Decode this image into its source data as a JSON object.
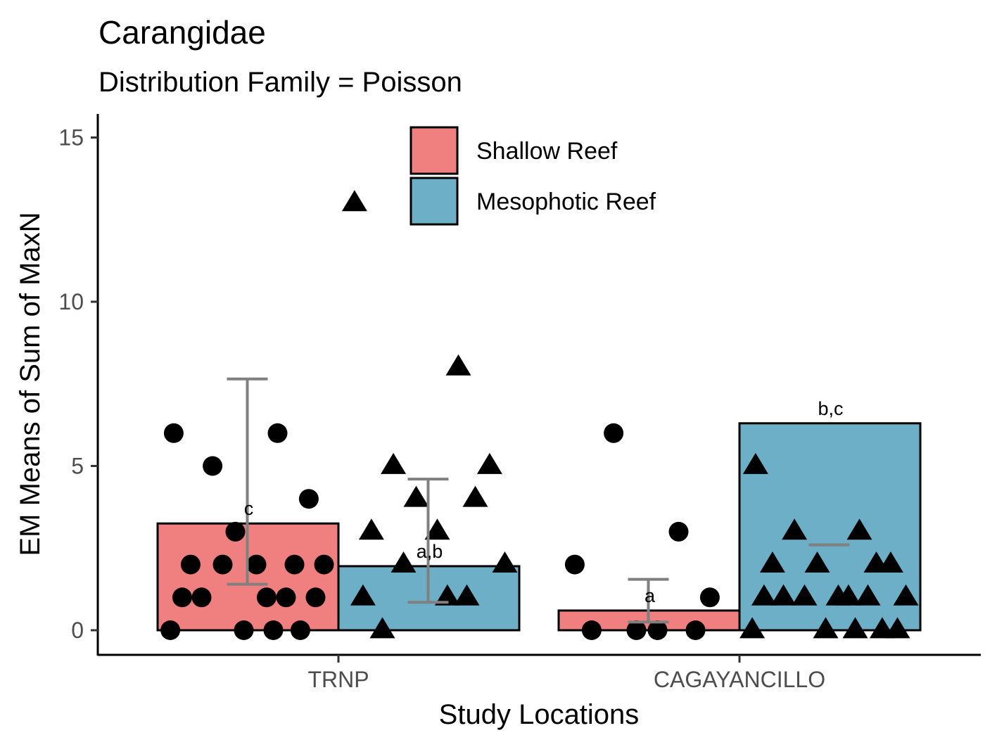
{
  "chart_data": {
    "type": "bar",
    "title": "Carangidae",
    "subtitle": "Distribution Family = Poisson",
    "xlabel": "Study Locations",
    "ylabel": "EM Means of Sum of MaxN",
    "categories": [
      "TRNP",
      "CAGAYANCILLO"
    ],
    "ylim": [
      -1.5,
      15.7
    ],
    "yticks": [
      0,
      5,
      10,
      15
    ],
    "legend_position": "top-center",
    "series": [
      {
        "name": "Shallow Reef",
        "color": "#F08080",
        "marker": "circle",
        "values": [
          3.25,
          0.6
        ],
        "ci_low": [
          1.4,
          0.25
        ],
        "ci_high": [
          7.65,
          1.55
        ],
        "labels": [
          "c",
          "a"
        ],
        "points": [
          [
            6,
            6,
            5,
            4,
            3,
            2,
            2,
            2,
            2,
            2,
            1,
            1,
            1,
            1,
            1,
            0,
            0,
            0,
            0
          ],
          [
            2,
            3,
            6,
            1,
            0,
            0,
            0,
            0
          ]
        ]
      },
      {
        "name": "Mesophotic Reef",
        "color": "#6EAFC8",
        "marker": "triangle",
        "values": [
          1.95,
          6.3
        ],
        "ci_low": [
          0.85,
          2.6
        ],
        "ci_high": [
          4.6,
          2.6
        ],
        "labels": [
          "a,b",
          "b,c"
        ],
        "points": [
          [
            13,
            8,
            5,
            5,
            4,
            4,
            3,
            3,
            2,
            2,
            1,
            1,
            1,
            0
          ],
          [
            5,
            3,
            3,
            2,
            2,
            2,
            2,
            1,
            1,
            1,
            1,
            1,
            1,
            1,
            0,
            0,
            0,
            0,
            0
          ]
        ]
      }
    ]
  }
}
